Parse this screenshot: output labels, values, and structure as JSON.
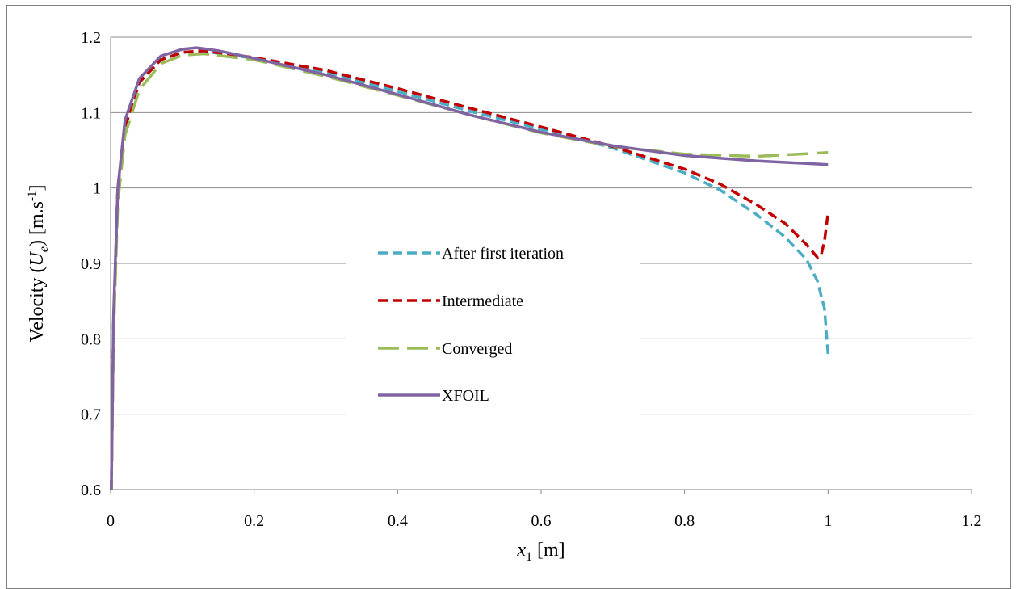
{
  "chart_data": {
    "type": "line",
    "xlabel": {
      "var": "x",
      "sub": "1",
      "unit": " [m]"
    },
    "ylabel": {
      "prefix": "Velocity (",
      "var": "U",
      "sub": "e",
      "mid": ") [m.s",
      "sup": "-1",
      "suffix": "]"
    },
    "xlim": [
      0,
      1.2
    ],
    "ylim": [
      0.6,
      1.2
    ],
    "xticks": [
      "0",
      "0.2",
      "0.4",
      "0.6",
      "0.8",
      "1",
      "1.2"
    ],
    "yticks": [
      "0.6",
      "0.7",
      "0.8",
      "0.9",
      "1",
      "1.1",
      "1.2"
    ],
    "grid": "horizontal",
    "legend_position": "center-left inside",
    "series": [
      {
        "name": "After first iteration",
        "color": "#4bacc6",
        "style": "dashed",
        "points": [
          [
            0.001,
            0.6
          ],
          [
            0.004,
            0.82
          ],
          [
            0.01,
            1.0
          ],
          [
            0.02,
            1.08
          ],
          [
            0.04,
            1.14
          ],
          [
            0.07,
            1.17
          ],
          [
            0.1,
            1.18
          ],
          [
            0.13,
            1.181
          ],
          [
            0.2,
            1.172
          ],
          [
            0.3,
            1.153
          ],
          [
            0.4,
            1.128
          ],
          [
            0.5,
            1.102
          ],
          [
            0.6,
            1.078
          ],
          [
            0.7,
            1.053
          ],
          [
            0.8,
            1.02
          ],
          [
            0.85,
            0.997
          ],
          [
            0.9,
            0.965
          ],
          [
            0.94,
            0.935
          ],
          [
            0.97,
            0.905
          ],
          [
            0.985,
            0.877
          ],
          [
            0.995,
            0.84
          ],
          [
            1.0,
            0.78
          ]
        ]
      },
      {
        "name": "Intermediate",
        "color": "#c00000",
        "style": "dashed",
        "points": [
          [
            0.001,
            0.6
          ],
          [
            0.004,
            0.82
          ],
          [
            0.01,
            1.0
          ],
          [
            0.02,
            1.08
          ],
          [
            0.04,
            1.14
          ],
          [
            0.07,
            1.17
          ],
          [
            0.1,
            1.18
          ],
          [
            0.13,
            1.182
          ],
          [
            0.2,
            1.173
          ],
          [
            0.3,
            1.156
          ],
          [
            0.4,
            1.132
          ],
          [
            0.5,
            1.106
          ],
          [
            0.6,
            1.081
          ],
          [
            0.7,
            1.055
          ],
          [
            0.8,
            1.025
          ],
          [
            0.85,
            1.005
          ],
          [
            0.9,
            0.978
          ],
          [
            0.94,
            0.953
          ],
          [
            0.97,
            0.925
          ],
          [
            0.985,
            0.908
          ],
          [
            0.99,
            0.91
          ],
          [
            0.995,
            0.93
          ],
          [
            1.0,
            0.967
          ]
        ]
      },
      {
        "name": "Converged",
        "color": "#9bbb59",
        "style": "long-dash",
        "points": [
          [
            0.001,
            0.6
          ],
          [
            0.004,
            0.8
          ],
          [
            0.01,
            0.98
          ],
          [
            0.02,
            1.07
          ],
          [
            0.04,
            1.13
          ],
          [
            0.07,
            1.165
          ],
          [
            0.1,
            1.176
          ],
          [
            0.13,
            1.178
          ],
          [
            0.2,
            1.17
          ],
          [
            0.3,
            1.148
          ],
          [
            0.4,
            1.123
          ],
          [
            0.5,
            1.097
          ],
          [
            0.6,
            1.073
          ],
          [
            0.7,
            1.055
          ],
          [
            0.8,
            1.045
          ],
          [
            0.9,
            1.042
          ],
          [
            1.0,
            1.047
          ]
        ]
      },
      {
        "name": "XFOIL",
        "color": "#8064a2",
        "style": "solid",
        "points": [
          [
            0.001,
            0.6
          ],
          [
            0.004,
            0.83
          ],
          [
            0.01,
            1.0
          ],
          [
            0.02,
            1.09
          ],
          [
            0.04,
            1.145
          ],
          [
            0.07,
            1.175
          ],
          [
            0.1,
            1.184
          ],
          [
            0.12,
            1.186
          ],
          [
            0.15,
            1.182
          ],
          [
            0.2,
            1.172
          ],
          [
            0.3,
            1.15
          ],
          [
            0.4,
            1.124
          ],
          [
            0.5,
            1.097
          ],
          [
            0.6,
            1.074
          ],
          [
            0.7,
            1.056
          ],
          [
            0.8,
            1.043
          ],
          [
            0.9,
            1.036
          ],
          [
            1.0,
            1.031
          ]
        ]
      }
    ]
  }
}
